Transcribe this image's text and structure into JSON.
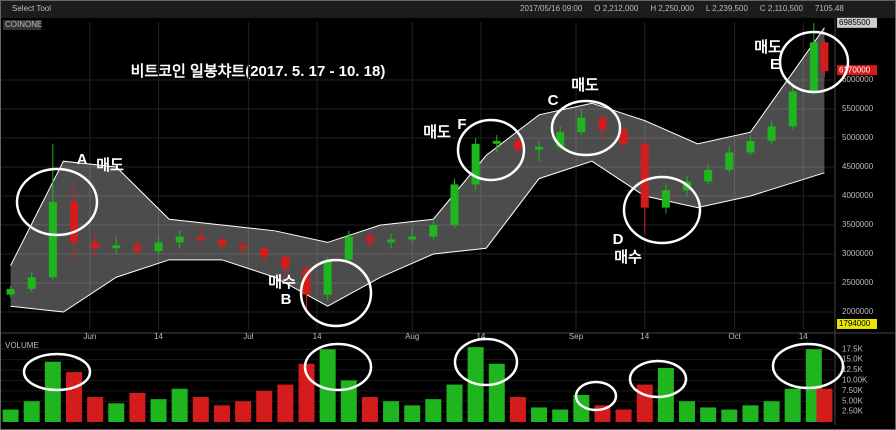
{
  "header": {
    "tool": "Select Tool",
    "source": "COINONE",
    "info": [
      "2017/05/16 09:00",
      "O 2,212,000",
      "H 2,250,000",
      "L 2,239,500",
      "C 2,110,500",
      "7105.48"
    ]
  },
  "chart_data": [
    {
      "type": "candlestick",
      "title": "비트코인 일봉챠트(2017. 5. 17 - 10. 18)",
      "x": [
        0,
        4,
        8,
        12,
        16,
        20,
        24,
        28,
        32,
        36,
        40,
        44,
        48,
        52,
        56,
        60,
        64,
        68,
        72,
        76,
        80,
        84,
        88,
        92,
        96,
        100,
        104,
        108,
        112,
        116,
        120,
        124,
        128,
        132,
        136,
        140,
        144,
        148,
        152,
        154
      ],
      "open": [
        2300000,
        2400000,
        2600000,
        3900000,
        3200000,
        3100000,
        3150000,
        3050000,
        3200000,
        3300000,
        3250000,
        3150000,
        3100000,
        2950000,
        2750000,
        2300000,
        2900000,
        3300000,
        3200000,
        3250000,
        3300000,
        3500000,
        4200000,
        4900000,
        4950000,
        4800000,
        4850000,
        5100000,
        5350000,
        5150000,
        4900000,
        3800000,
        4100000,
        4250000,
        4450000,
        4750000,
        4950000,
        5200000,
        5800000,
        6650000
      ],
      "high": [
        2450000,
        2700000,
        4900000,
        4200000,
        3350000,
        3300000,
        3250000,
        3300000,
        3400000,
        3450000,
        3350000,
        3250000,
        3150000,
        3000000,
        2800000,
        2950000,
        3400000,
        3400000,
        3350000,
        3450000,
        3600000,
        4300000,
        5000000,
        5050000,
        5000000,
        4950000,
        5200000,
        5500000,
        5400000,
        5200000,
        4950000,
        4200000,
        4350000,
        4550000,
        4850000,
        5050000,
        5300000,
        5900000,
        6980000,
        6700000
      ],
      "low": [
        2250000,
        2350000,
        2550000,
        2900000,
        2950000,
        3000000,
        2950000,
        3000000,
        3100000,
        3150000,
        3050000,
        3000000,
        2850000,
        2600000,
        2000000,
        2200000,
        2850000,
        3100000,
        3100000,
        3200000,
        3250000,
        3450000,
        4100000,
        4750000,
        4700000,
        4600000,
        4800000,
        5050000,
        5000000,
        4800000,
        3350000,
        3700000,
        4000000,
        4200000,
        4400000,
        4700000,
        4900000,
        5150000,
        5750000,
        6050000
      ],
      "close": [
        2400000,
        2600000,
        3900000,
        3200000,
        3100000,
        3150000,
        3050000,
        3200000,
        3300000,
        3250000,
        3150000,
        3100000,
        2950000,
        2750000,
        2300000,
        2900000,
        3300000,
        3200000,
        3250000,
        3300000,
        3500000,
        4200000,
        4900000,
        4950000,
        4800000,
        4850000,
        5100000,
        5350000,
        5150000,
        4900000,
        3800000,
        4100000,
        4250000,
        4450000,
        4750000,
        4950000,
        5200000,
        5800000,
        6650000,
        6150000
      ],
      "up_color": "#1fb51f",
      "down_color": "#d41c1c",
      "band": {
        "color": "#d9d9d9",
        "x": [
          0,
          10,
          20,
          30,
          40,
          50,
          60,
          70,
          80,
          90,
          100,
          110,
          120,
          130,
          140,
          154
        ],
        "upper": [
          2800000,
          4600000,
          4500000,
          3600000,
          3500000,
          3400000,
          3200000,
          3500000,
          3600000,
          4700000,
          5400000,
          5600000,
          5300000,
          4900000,
          5100000,
          6900000
        ],
        "lower": [
          2100000,
          2000000,
          2600000,
          2900000,
          2900000,
          2600000,
          2100000,
          2600000,
          3000000,
          3100000,
          4300000,
          4600000,
          4000000,
          3800000,
          4000000,
          4400000
        ]
      },
      "xlim": [
        -2,
        156
      ],
      "xticks": [
        {
          "value": 15,
          "label": "Jun"
        },
        {
          "value": 28,
          "label": "14"
        },
        {
          "value": 45,
          "label": "Jul"
        },
        {
          "value": 58,
          "label": "14"
        },
        {
          "value": 76,
          "label": "Aug"
        },
        {
          "value": 89,
          "label": "14"
        },
        {
          "value": 107,
          "label": "Sep"
        },
        {
          "value": 120,
          "label": "14"
        },
        {
          "value": 137,
          "label": "Oct"
        },
        {
          "value": 150,
          "label": "14"
        }
      ],
      "ylim": [
        1690000,
        7000000
      ],
      "yticks": [
        2000000,
        2500000,
        3000000,
        3500000,
        4000000,
        4500000,
        5000000,
        5500000,
        6000000
      ],
      "grid": true,
      "price_tags": [
        {
          "value": 6985500,
          "color": "#cccccc"
        },
        {
          "value": 6170000,
          "color": "#d41c1c"
        },
        {
          "value": 1794000,
          "color": "#e6e600"
        }
      ],
      "annotations": [
        {
          "label": "A",
          "text": "매도"
        },
        {
          "label": "B",
          "text": "매수"
        },
        {
          "label": "C",
          "text": "매도"
        },
        {
          "label": "D",
          "text": "매수"
        },
        {
          "label": "E",
          "text": "매도"
        },
        {
          "label": "F",
          "text": "매도"
        }
      ]
    },
    {
      "type": "volume",
      "title": "VOLUME",
      "values": [
        3000,
        5000,
        14500,
        12000,
        6000,
        4500,
        7000,
        5500,
        8000,
        6000,
        4000,
        5000,
        7500,
        9000,
        14000,
        17500,
        10000,
        6000,
        5000,
        4000,
        5500,
        9000,
        18000,
        14000,
        6000,
        3500,
        3000,
        6500,
        4000,
        3000,
        9000,
        13000,
        5000,
        3500,
        3000,
        4000,
        5000,
        8000,
        17500,
        8000
      ],
      "ylim": [
        0,
        19000
      ],
      "yticks": [
        {
          "value": 2500,
          "label": "2.50K"
        },
        {
          "value": 5000,
          "label": "5.00K"
        },
        {
          "value": 7500,
          "label": "7.50K"
        },
        {
          "value": 10000,
          "label": "10.00K"
        },
        {
          "value": 12500,
          "label": "12.5K"
        },
        {
          "value": 15000,
          "label": "15.0K"
        },
        {
          "value": 17500,
          "label": "17.5K"
        }
      ]
    }
  ]
}
